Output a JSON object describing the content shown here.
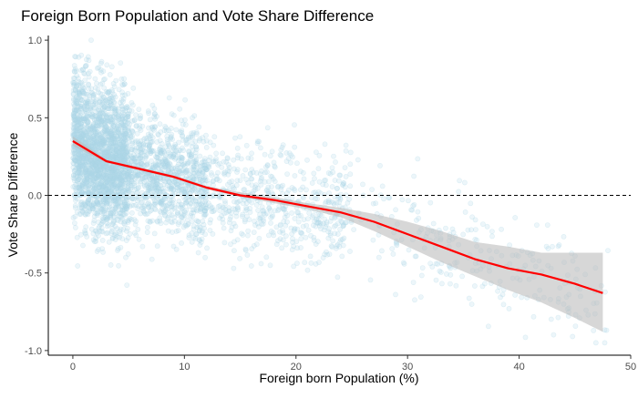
{
  "chart_data": {
    "type": "scatter",
    "title": "Foreign Born Population and Vote Share Difference",
    "xlabel": "Foreign born Population (%)",
    "ylabel": "Vote Share Difference",
    "xlim": [
      -2.2,
      50
    ],
    "ylim": [
      -1.03,
      1.03
    ],
    "x_ticks": [
      0,
      10,
      20,
      30,
      40,
      50
    ],
    "y_ticks": [
      -1.0,
      -0.5,
      0.0,
      0.5,
      1.0
    ],
    "x_tick_labels": [
      "0",
      "10",
      "20",
      "30",
      "40",
      "50"
    ],
    "y_tick_labels": [
      "-1.0",
      "-0.5",
      "0.0",
      "0.5",
      "1.0"
    ],
    "grid": false,
    "reference_line": {
      "y": 0,
      "style": "dashed"
    },
    "colors": {
      "points": "#add8e6",
      "smooth_line": "#ff0000",
      "ribbon": "#bdbdbd"
    },
    "scatter_series": {
      "name": "",
      "point_count": 4000,
      "x_range": [
        0,
        48
      ],
      "y_range": [
        -0.95,
        1.0
      ],
      "note_dense_region_x": [
        0,
        5
      ]
    },
    "smooth": {
      "x": [
        0,
        3,
        6,
        9,
        12,
        15,
        18,
        21,
        24,
        27,
        30,
        33,
        36,
        39,
        42,
        45,
        47.5
      ],
      "y": [
        0.35,
        0.22,
        0.17,
        0.12,
        0.05,
        0.0,
        -0.03,
        -0.07,
        -0.11,
        -0.17,
        -0.25,
        -0.33,
        -0.41,
        -0.47,
        -0.51,
        -0.57,
        -0.63
      ],
      "lower": [
        0.32,
        0.21,
        0.16,
        0.11,
        0.04,
        -0.01,
        -0.05,
        -0.09,
        -0.14,
        -0.23,
        -0.33,
        -0.43,
        -0.52,
        -0.61,
        -0.69,
        -0.79,
        -0.88
      ],
      "upper": [
        0.38,
        0.23,
        0.18,
        0.13,
        0.06,
        0.02,
        -0.01,
        -0.05,
        -0.08,
        -0.12,
        -0.17,
        -0.23,
        -0.3,
        -0.33,
        -0.37,
        -0.37,
        -0.37
      ]
    }
  }
}
